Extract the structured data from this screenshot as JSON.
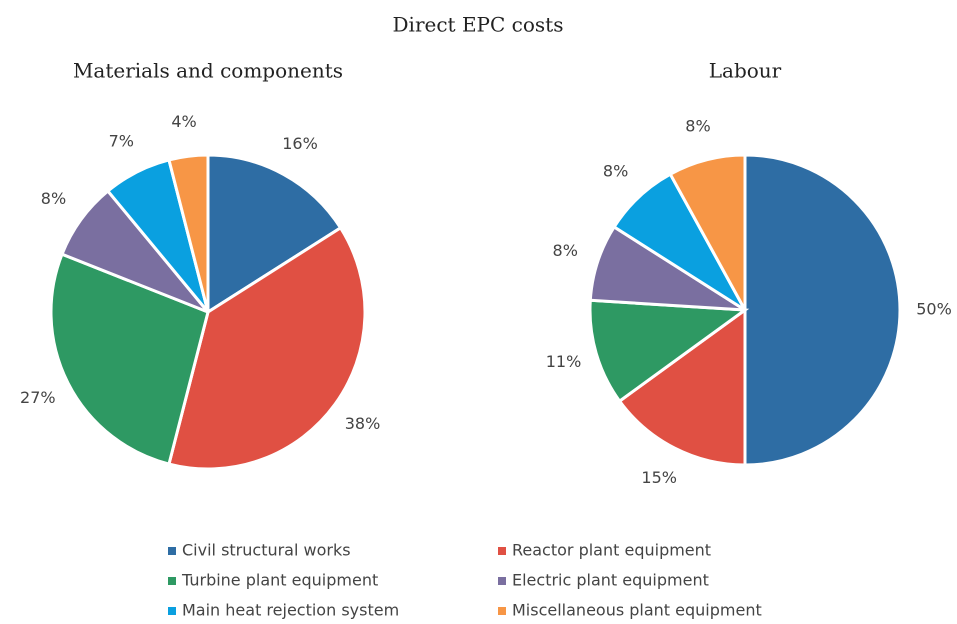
{
  "title": "Direct EPC costs",
  "chart_data": [
    {
      "type": "pie",
      "title": "Materials and components",
      "categories": [
        "Civil structural works",
        "Reactor plant equipment",
        "Turbine plant equipment",
        "Electric plant equipment",
        "Main heat rejection system",
        "Miscellaneous plant equipment"
      ],
      "colors": [
        "#2e6da4",
        "#e05043",
        "#2e9963",
        "#7a6fa0",
        "#0aa0e0",
        "#f79646"
      ],
      "values": [
        16,
        38,
        27,
        8,
        7,
        4
      ],
      "value_labels": [
        "16%",
        "38%",
        "27%",
        "8%",
        "7%",
        "4%"
      ]
    },
    {
      "type": "pie",
      "title": "Labour",
      "values": [
        50,
        15,
        11,
        8,
        8,
        8
      ],
      "value_labels": [
        "50%",
        "15%",
        "11%",
        "8%",
        "8%",
        "8%"
      ]
    }
  ]
}
